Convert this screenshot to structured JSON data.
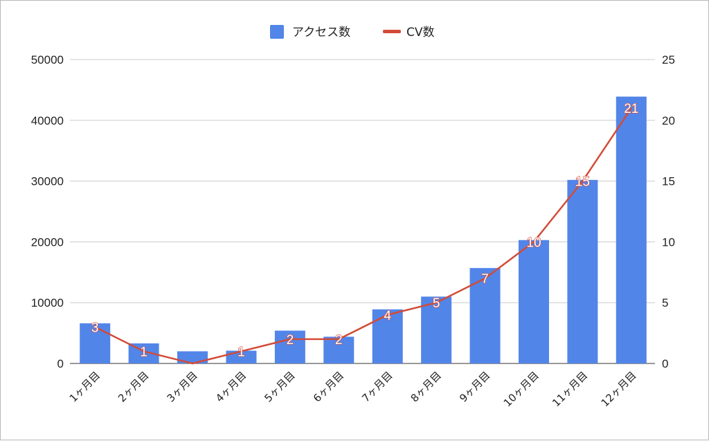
{
  "chart_data": {
    "type": "bar",
    "categories": [
      "1ヶ月目",
      "2ヶ月目",
      "3ヶ月目",
      "4ヶ月目",
      "5ヶ月目",
      "6ヶ月目",
      "7ヶ月目",
      "8ヶ月目",
      "9ヶ月目",
      "10ヶ月目",
      "11ヶ月目",
      "12ヶ月目"
    ],
    "series": [
      {
        "name": "アクセス数",
        "type": "bar",
        "axis": "left",
        "color": "#5285e8",
        "values": [
          6600,
          3300,
          2000,
          2100,
          5400,
          4400,
          8900,
          11000,
          15700,
          20300,
          30200,
          43900
        ]
      },
      {
        "name": "CV数",
        "type": "line",
        "axis": "right",
        "color": "#d24b38",
        "values": [
          3,
          1,
          0,
          1,
          2,
          2,
          4,
          5,
          7,
          10,
          15,
          21
        ]
      }
    ],
    "y_left": {
      "min": 0,
      "max": 50000,
      "ticks": [
        "0",
        "10000",
        "20000",
        "30000",
        "40000",
        "50000"
      ]
    },
    "y_right": {
      "min": 0,
      "max": 25,
      "ticks": [
        "0",
        "5",
        "10",
        "15",
        "20",
        "25"
      ]
    },
    "grid": true,
    "legend": "top-center",
    "data_labels": "line series",
    "gridline_color": "#cccccc"
  }
}
